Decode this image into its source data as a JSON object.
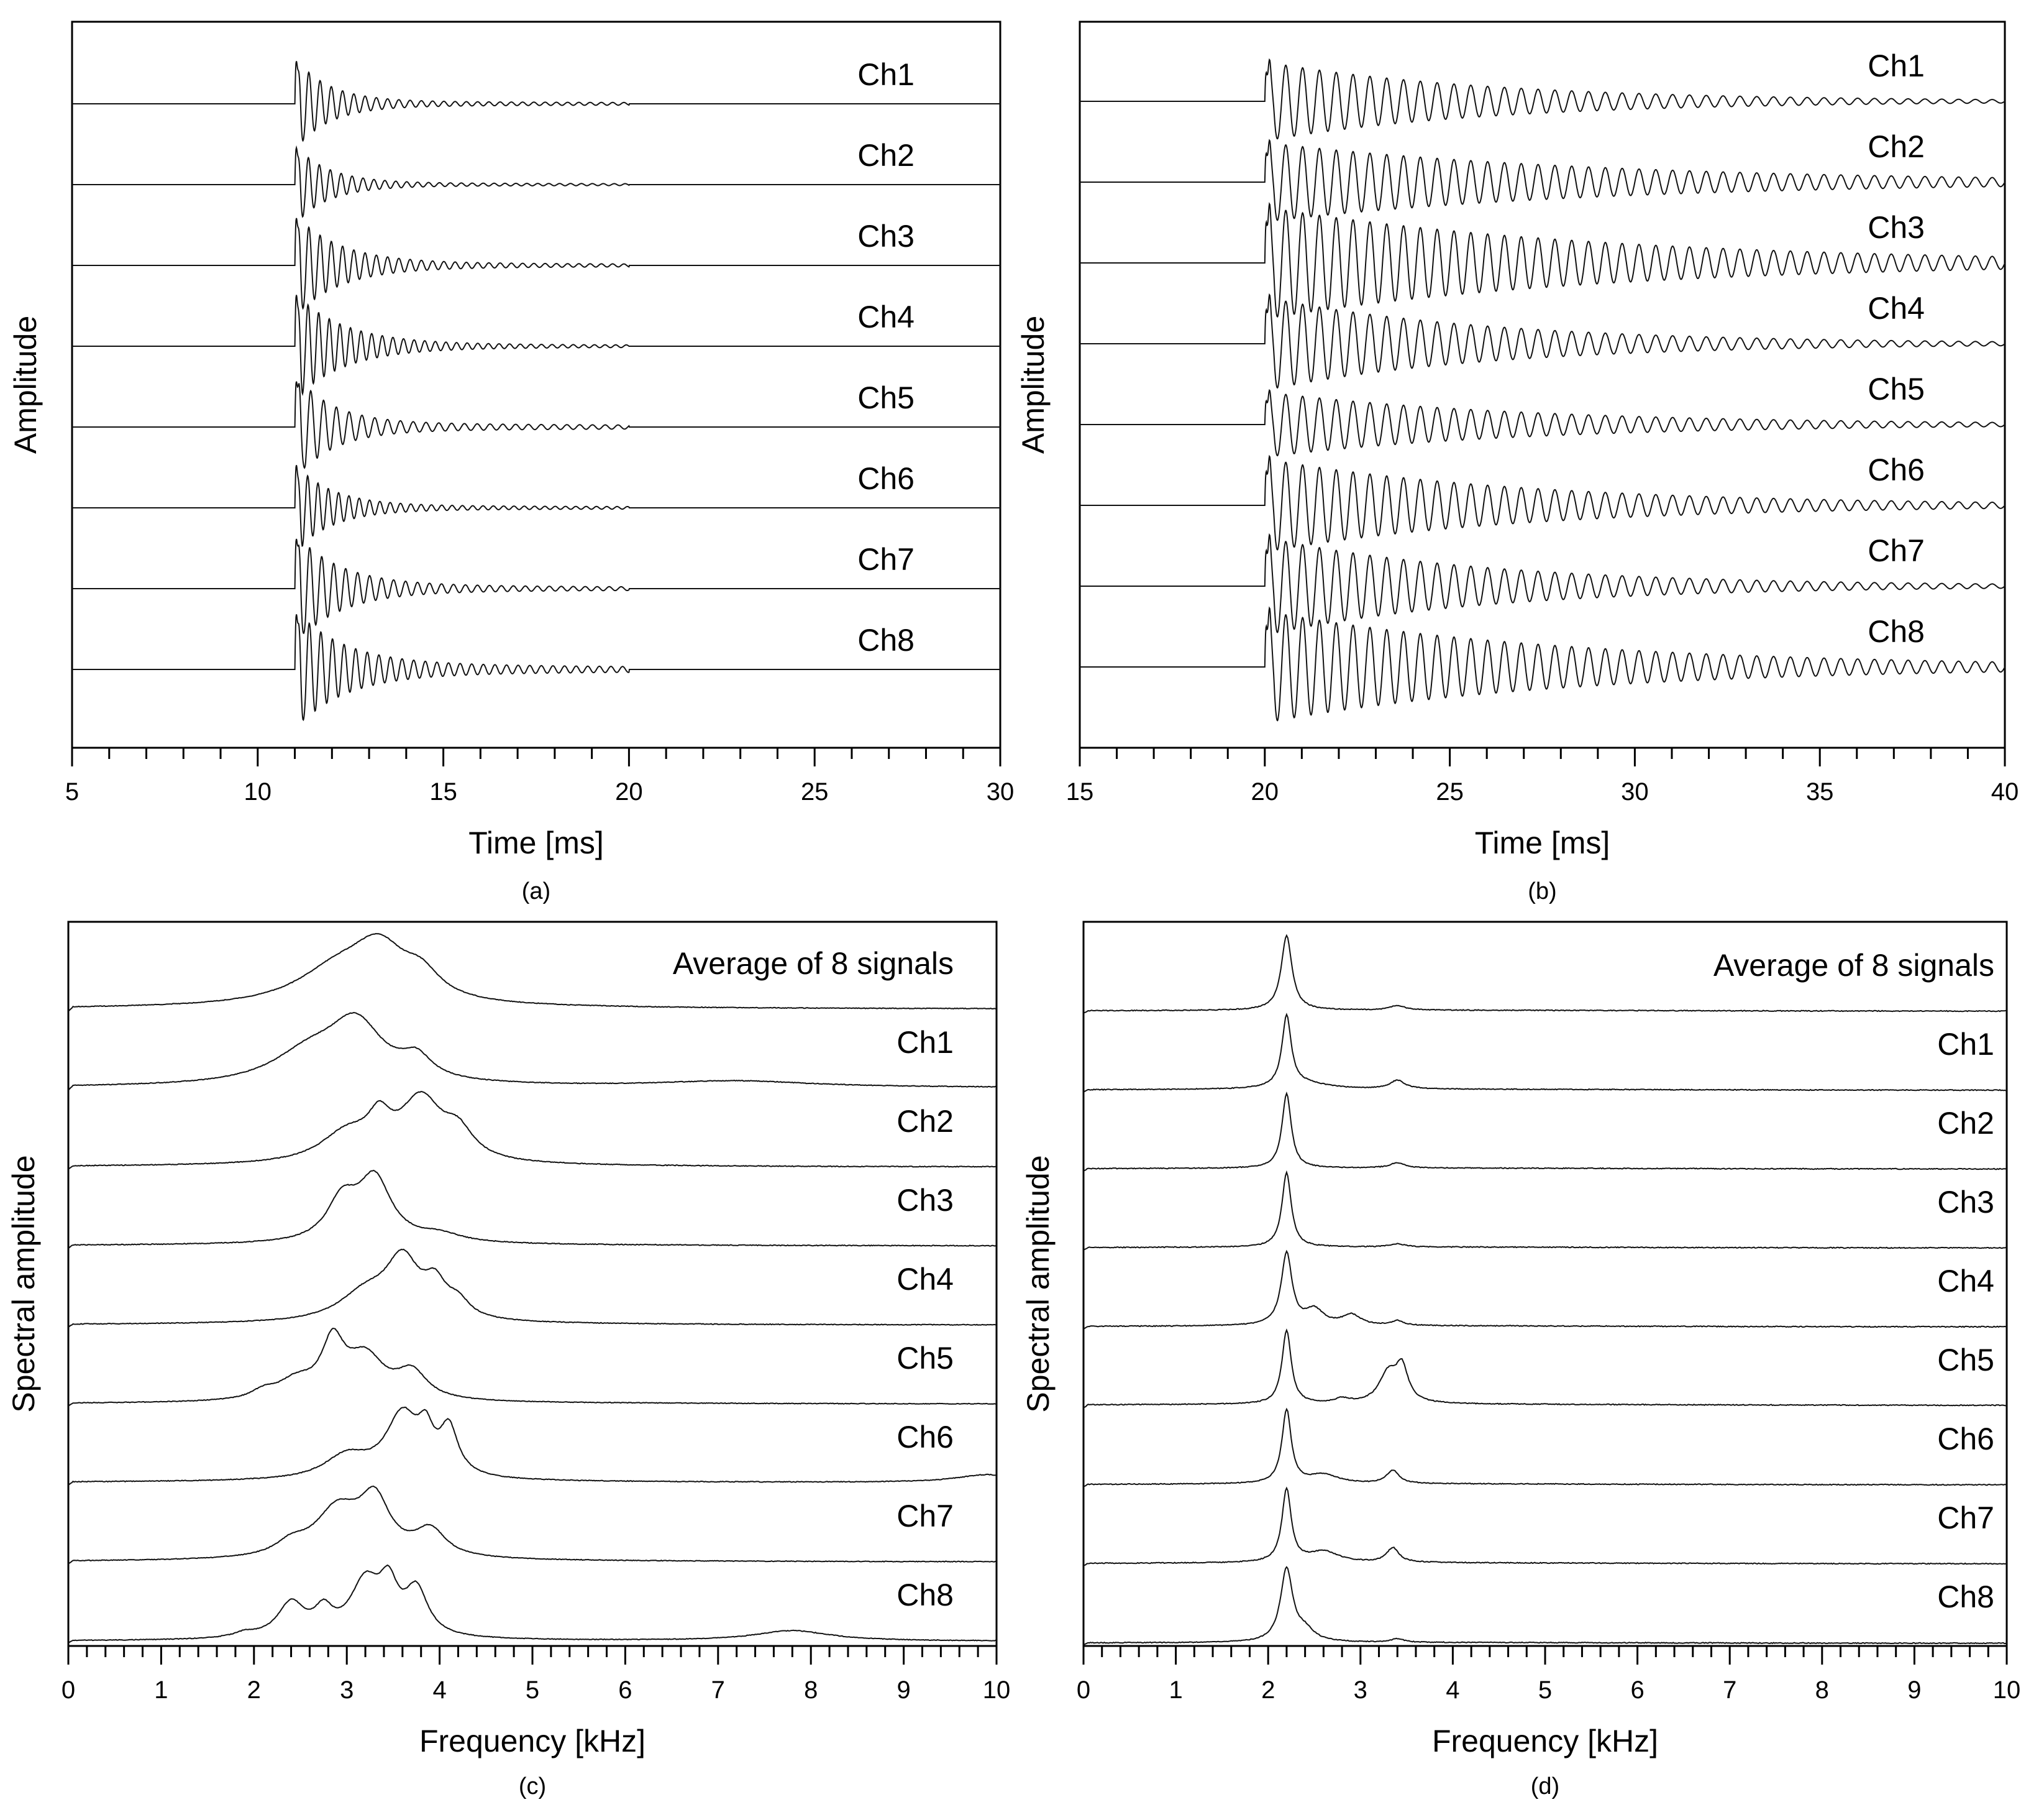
{
  "chart_data": [
    {
      "id": "a",
      "type": "line",
      "caption": "(a)",
      "xlabel": "Time [ms]",
      "ylabel": "Amplitude",
      "xlim": [
        5,
        30
      ],
      "xticks": [
        5,
        10,
        15,
        20,
        25,
        30
      ],
      "xtick_labels": [
        "5",
        "10",
        "15",
        "20",
        "25",
        "30"
      ],
      "xminor_step": 1,
      "signal": {
        "kind": "wave",
        "onset": 11.0,
        "end": 20.0
      },
      "series": [
        {
          "name": "Ch1",
          "values": {
            "freq_khz": 3.3,
            "amplitude": 1.0,
            "decay_ms": 0.9,
            "tail": 0.06
          }
        },
        {
          "name": "Ch2",
          "values": {
            "freq_khz": 3.4,
            "amplitude": 0.85,
            "decay_ms": 0.9,
            "tail": 0.05
          }
        },
        {
          "name": "Ch3",
          "values": {
            "freq_khz": 3.3,
            "amplitude": 1.1,
            "decay_ms": 1.2,
            "tail": 0.06
          }
        },
        {
          "name": "Ch4",
          "values": {
            "freq_khz": 3.5,
            "amplitude": 1.15,
            "decay_ms": 1.3,
            "tail": 0.05
          }
        },
        {
          "name": "Ch5",
          "values": {
            "freq_khz": 2.9,
            "amplitude": 1.15,
            "decay_ms": 1.0,
            "tail": 0.08
          }
        },
        {
          "name": "Ch6",
          "values": {
            "freq_khz": 3.6,
            "amplitude": 0.95,
            "decay_ms": 1.0,
            "tail": 0.06
          }
        },
        {
          "name": "Ch7",
          "values": {
            "freq_khz": 3.1,
            "amplitude": 1.2,
            "decay_ms": 1.2,
            "tail": 0.07
          }
        },
        {
          "name": "Ch8",
          "values": {
            "freq_khz": 3.2,
            "amplitude": 1.3,
            "decay_ms": 1.3,
            "tail": 0.1
          }
        }
      ]
    },
    {
      "id": "b",
      "type": "line",
      "caption": "(b)",
      "xlabel": "Time [ms]",
      "ylabel": "Amplitude",
      "xlim": [
        15,
        40
      ],
      "xticks": [
        15,
        20,
        25,
        30,
        35,
        40
      ],
      "xtick_labels": [
        "15",
        "20",
        "25",
        "30",
        "35",
        "40"
      ],
      "xminor_step": 1,
      "signal": {
        "kind": "wave",
        "onset": 20.0,
        "end": 40.0
      },
      "series": [
        {
          "name": "Ch1",
          "values": {
            "freq_khz": 2.2,
            "amplitude": 0.85,
            "decay_ms": 6.0,
            "tail": 0.05
          }
        },
        {
          "name": "Ch2",
          "values": {
            "freq_khz": 2.2,
            "amplitude": 0.85,
            "decay_ms": 9.0,
            "tail": 0.05
          }
        },
        {
          "name": "Ch3",
          "values": {
            "freq_khz": 2.2,
            "amplitude": 1.2,
            "decay_ms": 9.0,
            "tail": 0.06
          }
        },
        {
          "name": "Ch4",
          "values": {
            "freq_khz": 2.2,
            "amplitude": 1.0,
            "decay_ms": 6.0,
            "tail": 0.05
          }
        },
        {
          "name": "Ch5",
          "values": {
            "freq_khz": 2.2,
            "amplitude": 0.7,
            "decay_ms": 7.0,
            "tail": 0.05
          }
        },
        {
          "name": "Ch6",
          "values": {
            "freq_khz": 2.2,
            "amplitude": 1.0,
            "decay_ms": 7.0,
            "tail": 0.05
          }
        },
        {
          "name": "Ch7",
          "values": {
            "freq_khz": 2.2,
            "amplitude": 1.05,
            "decay_ms": 6.0,
            "tail": 0.05
          }
        },
        {
          "name": "Ch8",
          "values": {
            "freq_khz": 2.2,
            "amplitude": 1.2,
            "decay_ms": 8.0,
            "tail": 0.06
          }
        }
      ]
    },
    {
      "id": "c",
      "type": "line",
      "caption": "(c)",
      "xlabel": "Frequency [kHz]",
      "ylabel": "Spectral amplitude",
      "xlim": [
        0,
        10
      ],
      "xticks": [
        0,
        1,
        2,
        3,
        4,
        5,
        6,
        7,
        8,
        9,
        10
      ],
      "xtick_labels": [
        "0",
        "1",
        "2",
        "3",
        "4",
        "5",
        "6",
        "7",
        "8",
        "9",
        "10"
      ],
      "xminor_step": 0.2,
      "signal": {
        "kind": "spectrum"
      },
      "series": [
        {
          "name": "Average of 8 signals",
          "values": {
            "base": 0.06,
            "peaks": [
              [
                2.9,
                0.6,
                0.55
              ],
              [
                3.35,
                0.85,
                0.35
              ],
              [
                3.8,
                0.4,
                0.25
              ]
            ]
          }
        },
        {
          "name": "Ch1",
          "values": {
            "base": 0.06,
            "peaks": [
              [
                2.6,
                0.5,
                0.5
              ],
              [
                3.1,
                0.95,
                0.35
              ],
              [
                3.75,
                0.35,
                0.2
              ],
              [
                7.2,
                0.1,
                1.0
              ]
            ]
          }
        },
        {
          "name": "Ch2",
          "values": {
            "base": 0.05,
            "peaks": [
              [
                3.0,
                0.45,
                0.35
              ],
              [
                3.35,
                0.5,
                0.15
              ],
              [
                3.8,
                0.95,
                0.28
              ],
              [
                4.2,
                0.4,
                0.2
              ]
            ]
          }
        },
        {
          "name": "Ch3",
          "values": {
            "base": 0.05,
            "peaks": [
              [
                2.95,
                0.6,
                0.2
              ],
              [
                3.3,
                0.95,
                0.22
              ],
              [
                4.0,
                0.12,
                0.3
              ]
            ]
          }
        },
        {
          "name": "Ch4",
          "values": {
            "base": 0.05,
            "peaks": [
              [
                3.2,
                0.45,
                0.35
              ],
              [
                3.6,
                0.95,
                0.22
              ],
              [
                3.95,
                0.5,
                0.15
              ],
              [
                4.2,
                0.25,
                0.15
              ]
            ]
          }
        },
        {
          "name": "Ch5",
          "values": {
            "base": 0.05,
            "peaks": [
              [
                2.45,
                0.3,
                0.25
              ],
              [
                2.85,
                0.9,
                0.15
              ],
              [
                3.2,
                0.7,
                0.25
              ],
              [
                3.7,
                0.45,
                0.2
              ],
              [
                2.1,
                0.12,
                0.15
              ]
            ]
          }
        },
        {
          "name": "Ch6",
          "values": {
            "base": 0.05,
            "peaks": [
              [
                3.0,
                0.35,
                0.3
              ],
              [
                3.6,
                0.95,
                0.22
              ],
              [
                4.1,
                0.7,
                0.12
              ],
              [
                3.85,
                0.5,
                0.1
              ],
              [
                9.9,
                0.12,
                0.4
              ]
            ]
          }
        },
        {
          "name": "Ch7",
          "values": {
            "base": 0.05,
            "peaks": [
              [
                2.9,
                0.8,
                0.3
              ],
              [
                3.3,
                0.9,
                0.2
              ],
              [
                3.9,
                0.45,
                0.2
              ],
              [
                2.4,
                0.2,
                0.2
              ]
            ]
          }
        },
        {
          "name": "Ch8",
          "values": {
            "base": 0.04,
            "peaks": [
              [
                2.4,
                0.6,
                0.18
              ],
              [
                2.75,
                0.4,
                0.12
              ],
              [
                3.2,
                0.95,
                0.2
              ],
              [
                3.45,
                0.75,
                0.12
              ],
              [
                3.75,
                0.8,
                0.15
              ],
              [
                7.8,
                0.18,
                0.5
              ],
              [
                1.9,
                0.08,
                0.15
              ]
            ]
          }
        }
      ]
    },
    {
      "id": "d",
      "type": "line",
      "caption": "(d)",
      "xlabel": "Frequency [kHz]",
      "ylabel": "Spectral amplitude",
      "xlim": [
        0,
        10
      ],
      "xticks": [
        0,
        1,
        2,
        3,
        4,
        5,
        6,
        7,
        8,
        9,
        10
      ],
      "xtick_labels": [
        "0",
        "1",
        "2",
        "3",
        "4",
        "5",
        "6",
        "7",
        "8",
        "9",
        "10"
      ],
      "xminor_step": 0.2,
      "signal": {
        "kind": "spectrum"
      },
      "series": [
        {
          "name": "Average of 8 signals",
          "values": {
            "base": 0.04,
            "peaks": [
              [
                2.2,
                1.0,
                0.07
              ],
              [
                3.4,
                0.06,
                0.1
              ]
            ]
          }
        },
        {
          "name": "Ch1",
          "values": {
            "base": 0.04,
            "peaks": [
              [
                2.2,
                1.0,
                0.06
              ],
              [
                3.4,
                0.12,
                0.1
              ],
              [
                2.4,
                0.08,
                0.3
              ]
            ]
          }
        },
        {
          "name": "Ch2",
          "values": {
            "base": 0.04,
            "peaks": [
              [
                2.2,
                1.0,
                0.06
              ],
              [
                3.4,
                0.07,
                0.1
              ]
            ]
          }
        },
        {
          "name": "Ch3",
          "values": {
            "base": 0.04,
            "peaks": [
              [
                2.2,
                1.0,
                0.06
              ],
              [
                3.4,
                0.04,
                0.1
              ]
            ]
          }
        },
        {
          "name": "Ch4",
          "values": {
            "base": 0.04,
            "peaks": [
              [
                2.2,
                0.95,
                0.07
              ],
              [
                2.5,
                0.2,
                0.12
              ],
              [
                2.9,
                0.14,
                0.12
              ],
              [
                3.4,
                0.06,
                0.08
              ]
            ]
          }
        },
        {
          "name": "Ch5",
          "values": {
            "base": 0.05,
            "peaks": [
              [
                2.2,
                1.0,
                0.06
              ],
              [
                3.3,
                0.4,
                0.12
              ],
              [
                3.45,
                0.45,
                0.08
              ],
              [
                2.8,
                0.06,
                0.1
              ]
            ]
          }
        },
        {
          "name": "Ch6",
          "values": {
            "base": 0.04,
            "peaks": [
              [
                2.2,
                1.0,
                0.06
              ],
              [
                2.6,
                0.12,
                0.2
              ],
              [
                3.35,
                0.18,
                0.08
              ]
            ]
          }
        },
        {
          "name": "Ch7",
          "values": {
            "base": 0.04,
            "peaks": [
              [
                2.2,
                1.0,
                0.06
              ],
              [
                2.6,
                0.15,
                0.2
              ],
              [
                3.35,
                0.2,
                0.08
              ]
            ]
          }
        },
        {
          "name": "Ch8",
          "values": {
            "base": 0.03,
            "peaks": [
              [
                2.2,
                1.0,
                0.08
              ],
              [
                2.4,
                0.15,
                0.12
              ],
              [
                3.4,
                0.05,
                0.08
              ]
            ]
          }
        }
      ]
    }
  ]
}
